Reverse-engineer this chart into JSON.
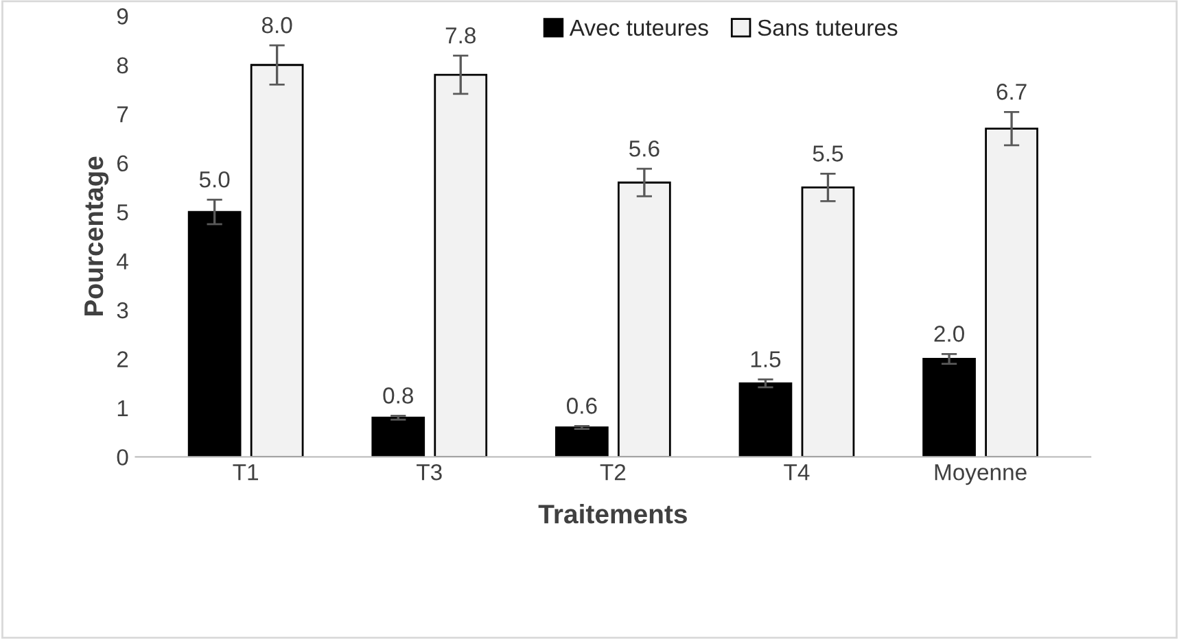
{
  "chart_data": {
    "type": "bar",
    "xlabel": "Traitements",
    "ylabel": "Pourcentage",
    "categories": [
      "T1",
      "T3",
      "T2",
      "T4",
      "Moyenne"
    ],
    "series": [
      {
        "name": "Avec tuteures",
        "color": "#000000",
        "values": [
          5.0,
          0.8,
          0.6,
          1.5,
          2.0
        ],
        "errors": [
          0.25,
          0.04,
          0.03,
          0.08,
          0.1
        ],
        "value_labels": [
          "5.0",
          "0.8",
          "0.6",
          "1.5",
          "2.0"
        ]
      },
      {
        "name": "Sans tuteures",
        "color": "#f2f2f2",
        "values": [
          8.0,
          7.8,
          5.6,
          5.5,
          6.7
        ],
        "errors": [
          0.4,
          0.39,
          0.28,
          0.28,
          0.34
        ],
        "value_labels": [
          "8.0",
          "7.8",
          "5.6",
          "5.5",
          "6.7"
        ]
      }
    ],
    "ylim": [
      0,
      9
    ],
    "yticks": [
      0,
      1,
      2,
      3,
      4,
      5,
      6,
      7,
      8,
      9
    ],
    "grid": false,
    "legend": "top right"
  }
}
